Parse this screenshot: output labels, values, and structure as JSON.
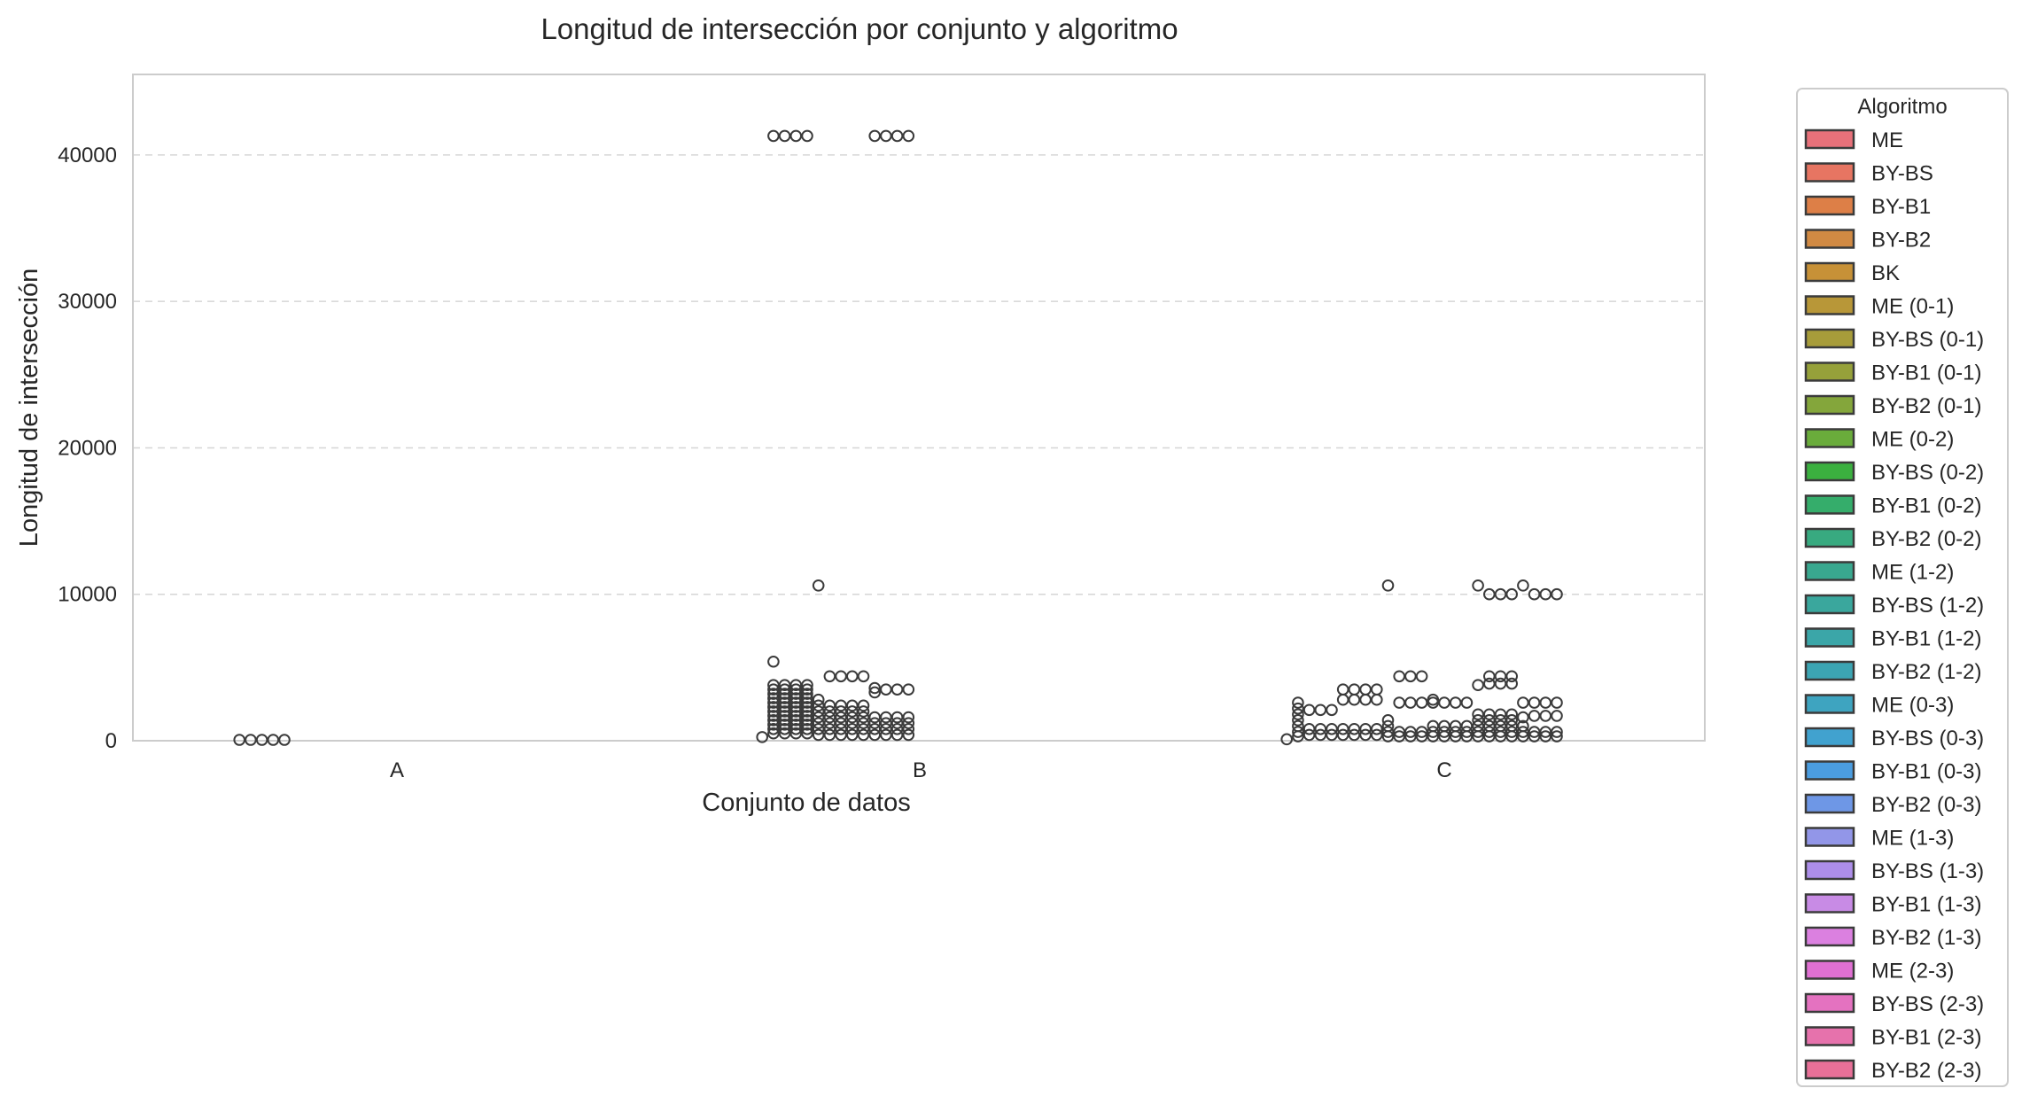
{
  "chart_data": {
    "type": "box",
    "title": "Longitud de intersección por conjunto y algoritmo",
    "xlabel": "Conjunto de datos",
    "ylabel": "Longitud de intersección",
    "categories": [
      "A",
      "B",
      "C"
    ],
    "ylim": [
      0,
      45500
    ],
    "yticks": [
      0,
      10000,
      20000,
      30000,
      40000
    ],
    "grid": "horizontal dashed",
    "legend": {
      "title": "Algoritmo",
      "placement": "outside right",
      "entries": [
        {
          "name": "ME",
          "color": "#e8717a"
        },
        {
          "name": "BY-BS",
          "color": "#e77562"
        },
        {
          "name": "BY-B1",
          "color": "#dd7f47"
        },
        {
          "name": "BY-B2",
          "color": "#d18a43"
        },
        {
          "name": "BK",
          "color": "#c79137"
        },
        {
          "name": "ME (0-1)",
          "color": "#b89738"
        },
        {
          "name": "BY-BS (0-1)",
          "color": "#a79c3a"
        },
        {
          "name": "BY-B1 (0-1)",
          "color": "#96a13a"
        },
        {
          "name": "BY-B2 (0-1)",
          "color": "#84a63b"
        },
        {
          "name": "ME (0-2)",
          "color": "#6aac3b"
        },
        {
          "name": "BY-BS (0-2)",
          "color": "#3bb03f"
        },
        {
          "name": "BY-B1 (0-2)",
          "color": "#35ad6b"
        },
        {
          "name": "BY-B2 (0-2)",
          "color": "#38aa80"
        },
        {
          "name": "ME (1-2)",
          "color": "#39a88f"
        },
        {
          "name": "BY-BS (1-2)",
          "color": "#3aa79d"
        },
        {
          "name": "BY-B1 (1-2)",
          "color": "#3ba6a8"
        },
        {
          "name": "BY-B2 (1-2)",
          "color": "#3ca5b3"
        },
        {
          "name": "ME (0-3)",
          "color": "#3ea4c0"
        },
        {
          "name": "BY-BS (0-3)",
          "color": "#41a2cf"
        },
        {
          "name": "BY-B1 (0-3)",
          "color": "#4b9de0"
        },
        {
          "name": "BY-B2 (0-3)",
          "color": "#6e97e6"
        },
        {
          "name": "ME (1-3)",
          "color": "#9296e8"
        },
        {
          "name": "BY-BS (1-3)",
          "color": "#ad8ee9"
        },
        {
          "name": "BY-B1 (1-3)",
          "color": "#c88be5"
        },
        {
          "name": "BY-B2 (1-3)",
          "color": "#db80e0"
        },
        {
          "name": "ME (2-3)",
          "color": "#e070d3"
        },
        {
          "name": "BY-BS (2-3)",
          "color": "#e472c0"
        },
        {
          "name": "BY-B1 (2-3)",
          "color": "#e672ac"
        },
        {
          "name": "BY-B2 (2-3)",
          "color": "#e87098"
        }
      ]
    },
    "outliers": [
      {
        "category": "A",
        "points": [
          [
            0,
            60
          ],
          [
            1,
            60
          ],
          [
            2,
            60
          ],
          [
            3,
            60
          ],
          [
            4,
            60
          ]
        ]
      },
      {
        "category": "B",
        "points": [
          [
            0,
            250
          ],
          [
            1,
            500
          ],
          [
            1,
            3800
          ],
          [
            1,
            3500
          ],
          [
            1,
            3200
          ],
          [
            1,
            2900
          ],
          [
            1,
            2600
          ],
          [
            1,
            2300
          ],
          [
            1,
            2000
          ],
          [
            1,
            1700
          ],
          [
            1,
            1400
          ],
          [
            1,
            1100
          ],
          [
            1,
            800
          ],
          [
            2,
            3800
          ],
          [
            2,
            3500
          ],
          [
            2,
            3200
          ],
          [
            2,
            2900
          ],
          [
            2,
            2600
          ],
          [
            2,
            2300
          ],
          [
            2,
            2000
          ],
          [
            2,
            1700
          ],
          [
            2,
            1400
          ],
          [
            2,
            1100
          ],
          [
            2,
            800
          ],
          [
            2,
            500
          ],
          [
            3,
            3800
          ],
          [
            3,
            3500
          ],
          [
            3,
            3200
          ],
          [
            3,
            2900
          ],
          [
            3,
            2600
          ],
          [
            3,
            2300
          ],
          [
            3,
            2000
          ],
          [
            3,
            1700
          ],
          [
            3,
            1400
          ],
          [
            3,
            1100
          ],
          [
            3,
            800
          ],
          [
            3,
            500
          ],
          [
            4,
            3800
          ],
          [
            4,
            3500
          ],
          [
            4,
            3200
          ],
          [
            4,
            2900
          ],
          [
            4,
            2600
          ],
          [
            4,
            2300
          ],
          [
            4,
            2000
          ],
          [
            4,
            1700
          ],
          [
            4,
            1400
          ],
          [
            4,
            1100
          ],
          [
            4,
            800
          ],
          [
            4,
            500
          ],
          [
            5,
            2800
          ],
          [
            5,
            2400
          ],
          [
            5,
            2000
          ],
          [
            5,
            1600
          ],
          [
            5,
            1200
          ],
          [
            5,
            800
          ],
          [
            5,
            400
          ],
          [
            6,
            4400
          ],
          [
            6,
            2400
          ],
          [
            6,
            2000
          ],
          [
            6,
            1600
          ],
          [
            6,
            1200
          ],
          [
            6,
            800
          ],
          [
            6,
            400
          ],
          [
            7,
            4400
          ],
          [
            7,
            2400
          ],
          [
            7,
            2000
          ],
          [
            7,
            1600
          ],
          [
            7,
            1200
          ],
          [
            7,
            800
          ],
          [
            7,
            400
          ],
          [
            8,
            4400
          ],
          [
            8,
            2400
          ],
          [
            8,
            2000
          ],
          [
            8,
            1600
          ],
          [
            8,
            1200
          ],
          [
            8,
            800
          ],
          [
            8,
            400
          ],
          [
            9,
            4400
          ],
          [
            9,
            2400
          ],
          [
            9,
            2000
          ],
          [
            9,
            1600
          ],
          [
            9,
            1200
          ],
          [
            9,
            800
          ],
          [
            9,
            400
          ],
          [
            10,
            3600
          ],
          [
            10,
            3300
          ],
          [
            10,
            1600
          ],
          [
            10,
            1200
          ],
          [
            10,
            800
          ],
          [
            10,
            400
          ],
          [
            11,
            3500
          ],
          [
            11,
            1600
          ],
          [
            11,
            1200
          ],
          [
            11,
            800
          ],
          [
            11,
            400
          ],
          [
            12,
            3500
          ],
          [
            12,
            1600
          ],
          [
            12,
            1200
          ],
          [
            12,
            800
          ],
          [
            12,
            400
          ],
          [
            13,
            3500
          ],
          [
            13,
            1600
          ],
          [
            13,
            1200
          ],
          [
            13,
            800
          ],
          [
            13,
            400
          ],
          [
            1,
            5400
          ],
          [
            1,
            41300
          ],
          [
            2,
            41300
          ],
          [
            3,
            41300
          ],
          [
            4,
            41300
          ],
          [
            5,
            10600
          ],
          [
            10,
            41300
          ],
          [
            11,
            41300
          ],
          [
            12,
            41300
          ],
          [
            13,
            41300
          ]
        ]
      },
      {
        "category": "C",
        "points": [
          [
            0,
            100
          ],
          [
            1,
            2600
          ],
          [
            1,
            2200
          ],
          [
            1,
            1800
          ],
          [
            1,
            1400
          ],
          [
            1,
            1000
          ],
          [
            1,
            600
          ],
          [
            1,
            300
          ],
          [
            2,
            2100
          ],
          [
            2,
            800
          ],
          [
            2,
            400
          ],
          [
            3,
            2100
          ],
          [
            3,
            800
          ],
          [
            3,
            400
          ],
          [
            4,
            2100
          ],
          [
            4,
            800
          ],
          [
            4,
            400
          ],
          [
            5,
            3500
          ],
          [
            5,
            2800
          ],
          [
            5,
            800
          ],
          [
            5,
            400
          ],
          [
            6,
            3500
          ],
          [
            6,
            2800
          ],
          [
            6,
            800
          ],
          [
            6,
            400
          ],
          [
            7,
            3500
          ],
          [
            7,
            2800
          ],
          [
            7,
            800
          ],
          [
            7,
            400
          ],
          [
            8,
            3500
          ],
          [
            8,
            2800
          ],
          [
            8,
            800
          ],
          [
            8,
            400
          ],
          [
            9,
            1400
          ],
          [
            9,
            1000
          ],
          [
            9,
            600
          ],
          [
            9,
            300
          ],
          [
            9,
            10600
          ],
          [
            10,
            4400
          ],
          [
            10,
            2600
          ],
          [
            10,
            600
          ],
          [
            10,
            300
          ],
          [
            11,
            4400
          ],
          [
            11,
            2600
          ],
          [
            11,
            600
          ],
          [
            11,
            300
          ],
          [
            12,
            4400
          ],
          [
            12,
            2600
          ],
          [
            12,
            600
          ],
          [
            12,
            300
          ],
          [
            13,
            2800
          ],
          [
            13,
            2600
          ],
          [
            13,
            1000
          ],
          [
            13,
            600
          ],
          [
            13,
            300
          ],
          [
            14,
            2600
          ],
          [
            14,
            1000
          ],
          [
            14,
            600
          ],
          [
            14,
            300
          ],
          [
            15,
            2600
          ],
          [
            15,
            1000
          ],
          [
            15,
            600
          ],
          [
            15,
            300
          ],
          [
            16,
            2600
          ],
          [
            16,
            1000
          ],
          [
            16,
            600
          ],
          [
            16,
            300
          ],
          [
            17,
            10600
          ],
          [
            17,
            3800
          ],
          [
            17,
            1800
          ],
          [
            17,
            1400
          ],
          [
            17,
            1000
          ],
          [
            17,
            600
          ],
          [
            17,
            300
          ],
          [
            18,
            10000
          ],
          [
            18,
            4400
          ],
          [
            18,
            3900
          ],
          [
            18,
            1800
          ],
          [
            18,
            1400
          ],
          [
            18,
            1000
          ],
          [
            18,
            600
          ],
          [
            18,
            300
          ],
          [
            19,
            10000
          ],
          [
            19,
            4400
          ],
          [
            19,
            3900
          ],
          [
            19,
            1800
          ],
          [
            19,
            1400
          ],
          [
            19,
            1000
          ],
          [
            19,
            600
          ],
          [
            19,
            300
          ],
          [
            20,
            10000
          ],
          [
            20,
            4400
          ],
          [
            20,
            3900
          ],
          [
            20,
            1800
          ],
          [
            20,
            1400
          ],
          [
            20,
            1000
          ],
          [
            20,
            600
          ],
          [
            20,
            300
          ],
          [
            21,
            10600
          ],
          [
            21,
            2600
          ],
          [
            21,
            1600
          ],
          [
            21,
            1000
          ],
          [
            21,
            600
          ],
          [
            21,
            300
          ],
          [
            22,
            10000
          ],
          [
            22,
            2600
          ],
          [
            22,
            1700
          ],
          [
            22,
            600
          ],
          [
            22,
            300
          ],
          [
            23,
            10000
          ],
          [
            23,
            2600
          ],
          [
            23,
            1700
          ],
          [
            23,
            600
          ],
          [
            23,
            300
          ],
          [
            24,
            10000
          ],
          [
            24,
            2600
          ],
          [
            24,
            1700
          ],
          [
            24,
            600
          ],
          [
            24,
            300
          ]
        ]
      }
    ]
  }
}
